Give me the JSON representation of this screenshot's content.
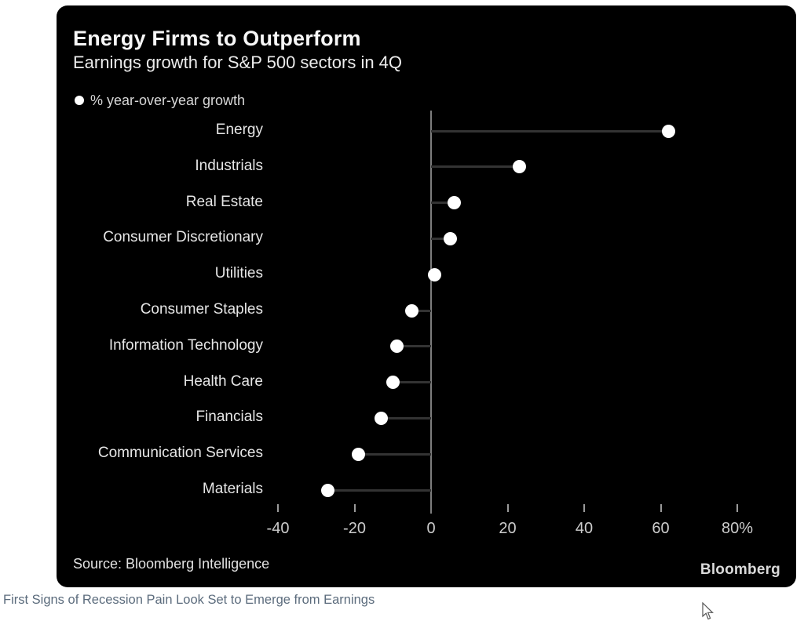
{
  "chart": {
    "title": "Energy Firms to Outperform",
    "subtitle": "Earnings growth for S&P 500 sectors in 4Q",
    "legend_label": "% year-over-year growth",
    "source": "Source: Bloomberg Intelligence",
    "brand": "Bloomberg"
  },
  "page": {
    "caption": "First Signs of Recession Pain Look Set to Emerge from Earnings"
  },
  "chart_data": {
    "type": "scatter",
    "subtype": "horizontal-lollipop-dot-plot",
    "title": "Energy Firms to Outperform",
    "subtitle": "Earnings growth for S&P 500 sectors in 4Q",
    "legend": [
      "% year-over-year growth"
    ],
    "legend_position": "top-left",
    "categories": [
      "Energy",
      "Industrials",
      "Real Estate",
      "Consumer Discretionary",
      "Utilities",
      "Consumer Staples",
      "Information Technology",
      "Health Care",
      "Financials",
      "Communication Services",
      "Materials"
    ],
    "values": [
      62,
      23,
      6,
      5,
      1,
      -5,
      -9,
      -10,
      -13,
      -19,
      -27
    ],
    "unit": "%",
    "xlabel": "",
    "ylabel": "",
    "x_ticks": [
      -40,
      -20,
      0,
      20,
      40,
      60,
      80
    ],
    "x_tick_labels": [
      "-40",
      "-20",
      "0",
      "20",
      "40",
      "60",
      "80%"
    ],
    "xlim": [
      -48,
      90
    ],
    "grid": false,
    "source": "Source: Bloomberg Intelligence",
    "brand": "Bloomberg",
    "colors": {
      "background": "#000000",
      "dot": "#ffffff",
      "connector": "#333333",
      "axis": "#7d7d7d",
      "text": "#e6e6e6",
      "caption_link": "#5c6c7d"
    }
  }
}
